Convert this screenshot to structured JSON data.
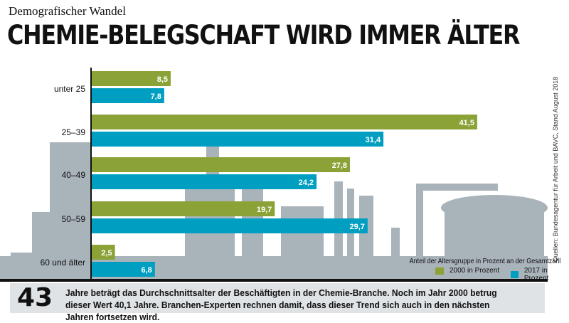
{
  "kicker": "Demografischer Wandel",
  "title": "CHEMIE-BELEGSCHAFT WIRD IMMER ÄLTER",
  "source": "Quellen: Bundesagentur für Arbeit und BAVC, Stand August 2018",
  "chart_data": {
    "type": "bar",
    "orientation": "horizontal",
    "categories": [
      "unter 25",
      "25–39",
      "40–49",
      "50–59",
      "60 und älter"
    ],
    "series": [
      {
        "name": "2000 in Prozent",
        "color": "#8ba336",
        "values": [
          8.5,
          41.5,
          27.8,
          19.7,
          2.5
        ],
        "labels": [
          "8,5",
          "41,5",
          "27,8",
          "19,7",
          "2,5"
        ]
      },
      {
        "name": "2017 in Prozent",
        "color": "#009fc1",
        "values": [
          7.8,
          31.4,
          24.2,
          29.7,
          6.8
        ],
        "labels": [
          "7,8",
          "31,4",
          "24,2",
          "29,7",
          "6,8"
        ]
      }
    ],
    "legend_title": "Anteil der Altersgruppe in Prozent an der Gesamtzahl",
    "legend_placement": "bottom-right"
  },
  "footer": {
    "number": "43",
    "text": "Jahre beträgt das Durchschnittsalter der Beschäftigten in der Chemie-Branche. Noch im Jahr 2000 betrug dieser Wert 40,1 Jahre. Branchen-Experten rechnen damit, dass dieser Trend sich auch in den nächsten Jahren fortsetzen wird."
  }
}
